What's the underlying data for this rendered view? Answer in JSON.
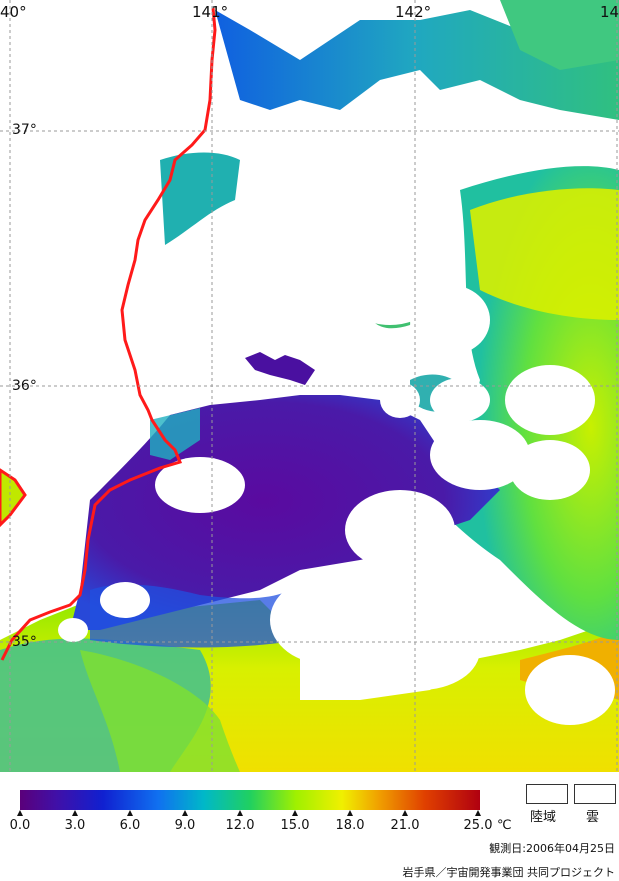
{
  "map": {
    "lat_labels": [
      "37°",
      "36°",
      "35°"
    ],
    "lon_labels": [
      "40°",
      "141°",
      "142°",
      "14"
    ],
    "colors": {
      "cloud": "#ffffff",
      "coast": "#ff1a1a",
      "grid": "#9a9a9a",
      "cold": "#4b0090",
      "blue": "#2040e0",
      "cyan": "#00b0d0",
      "green": "#40d040",
      "yellow_green": "#b0f000",
      "yellow": "#f0f000",
      "orange": "#f0a000"
    }
  },
  "legend": {
    "ticks": [
      "0.0",
      "3.0",
      "6.0",
      "9.0",
      "12.0",
      "15.0",
      "18.0",
      "21.0",
      "25.0"
    ],
    "unit": "℃",
    "key_land": "陸域",
    "key_cloud": "雲",
    "date_text": "観測日:2006年04月25日",
    "credit_text": "岩手県／宇宙開発事業団 共同プロジェクト"
  }
}
